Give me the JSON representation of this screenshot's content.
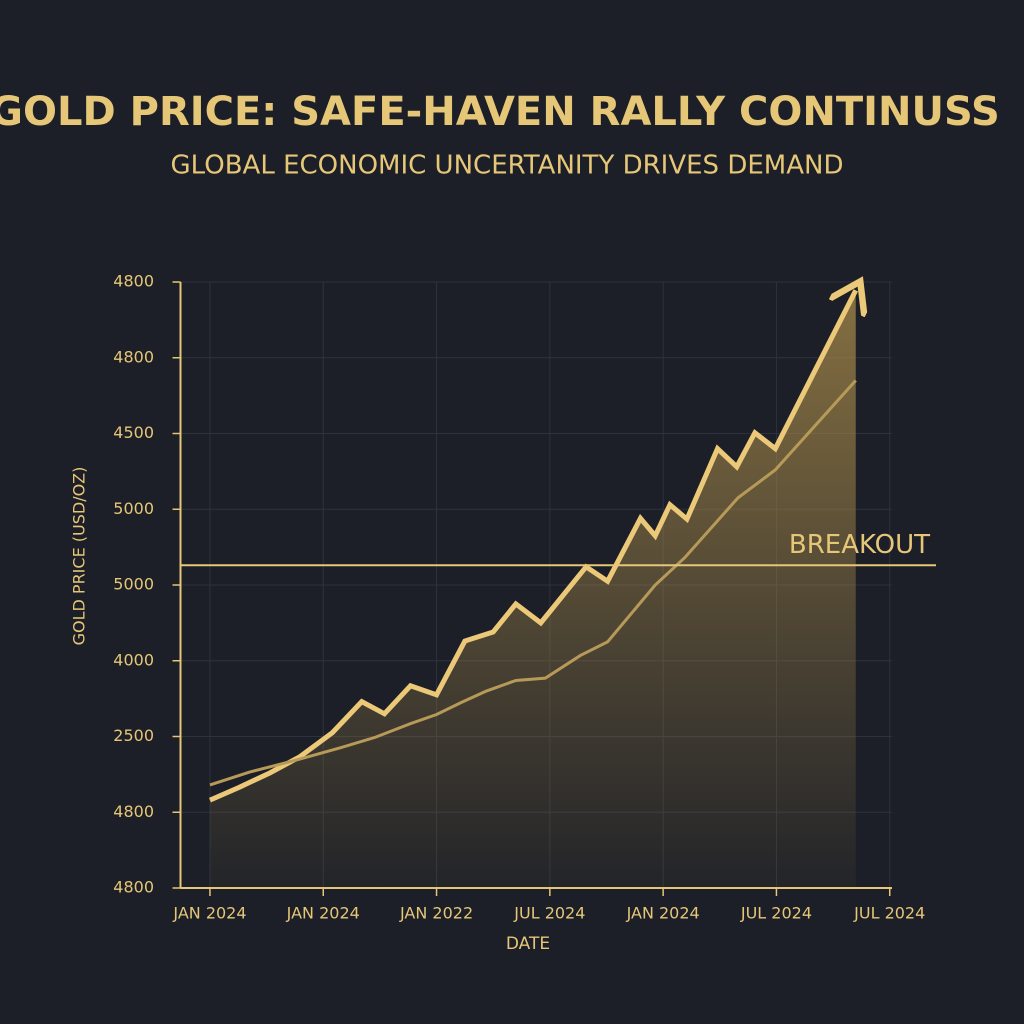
{
  "chart_data": {
    "type": "line",
    "title": "GOLD PRICE: SAFE-HAVEN RALLY CONTINUSS",
    "subtitle": "GLOBAL ECONOMIC UNCERTANITY DRIVES DEMAND",
    "y_label": "GOLD PRICE (USD/OZ)",
    "x_label": "DATE",
    "xlim": [
      -0.26,
      6.02
    ],
    "ylim": [
      0,
      8
    ],
    "xticks": [
      {
        "value": 0,
        "label": "JAN 2024"
      },
      {
        "value": 1,
        "label": "JAN 2024"
      },
      {
        "value": 2,
        "label": "JAN 2022"
      },
      {
        "value": 3,
        "label": "JUL 2024"
      },
      {
        "value": 4,
        "label": "JAN 2024"
      },
      {
        "value": 5,
        "label": "JUL 2024"
      },
      {
        "value": 6,
        "label": "JUL 2024"
      }
    ],
    "yticks": [
      {
        "value": 0,
        "label": "4800"
      },
      {
        "value": 1,
        "label": "4800"
      },
      {
        "value": 2,
        "label": "2500"
      },
      {
        "value": 3,
        "label": "4000"
      },
      {
        "value": 4,
        "label": "5000"
      },
      {
        "value": 5,
        "label": "5000"
      },
      {
        "value": 6,
        "label": "4500"
      },
      {
        "value": 7,
        "label": "4800"
      },
      {
        "value": 8,
        "label": "4800"
      }
    ],
    "grid": true,
    "series": [
      {
        "color": "#ecc978",
        "fill": true,
        "arrow": true,
        "x": [
          0,
          0.26,
          0.53,
          0.79,
          1.08,
          1.34,
          1.54,
          1.77,
          2.0,
          2.25,
          2.5,
          2.7,
          2.92,
          3.32,
          3.51,
          3.8,
          3.93,
          4.06,
          4.21,
          4.48,
          4.65,
          4.81,
          4.99,
          5.7
        ],
        "values": [
          1.16,
          1.33,
          1.52,
          1.73,
          2.05,
          2.46,
          2.3,
          2.67,
          2.55,
          3.26,
          3.38,
          3.75,
          3.5,
          4.24,
          4.05,
          4.88,
          4.65,
          5.06,
          4.87,
          5.8,
          5.56,
          6.01,
          5.8,
          7.89
        ]
      },
      {
        "color": "#b89a58",
        "fill": false,
        "arrow": false,
        "x": [
          0,
          0.35,
          0.79,
          1.15,
          1.46,
          1.77,
          2.0,
          2.22,
          2.44,
          2.7,
          2.96,
          3.27,
          3.51,
          3.93,
          4.19,
          4.66,
          4.99,
          5.7
        ],
        "values": [
          1.36,
          1.53,
          1.7,
          1.85,
          1.99,
          2.17,
          2.29,
          2.45,
          2.6,
          2.74,
          2.77,
          3.07,
          3.25,
          4.0,
          4.36,
          5.15,
          5.52,
          6.7
        ]
      }
    ],
    "breakout": {
      "label": "BREAKOUT",
      "value": 4.26
    }
  }
}
